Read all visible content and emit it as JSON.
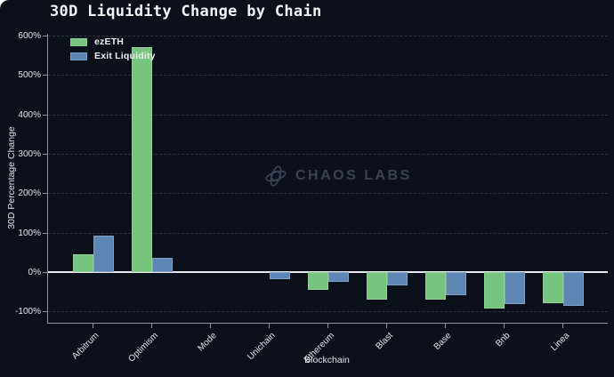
{
  "header": {
    "title": "30D Liquidity Change by Chain"
  },
  "watermark": {
    "label": "CHAOS LABS",
    "logo_icon": "chaos-labs-atom-icon"
  },
  "colors": {
    "background": "#0c101b",
    "ezeth_green": "#76c47e",
    "exit_liquidity_blue": "#5d86b5",
    "gridline": "#2e3342",
    "zero_line": "#e6e8ed",
    "text": "#e2e5ea"
  },
  "chart_data": {
    "type": "bar",
    "title": "30D Liquidity Change by Chain",
    "xlabel": "Blockchain",
    "ylabel": "30D Percentage Change",
    "categories": [
      "Arbitrum",
      "Optimism",
      "Mode",
      "Unichain",
      "Ethereum",
      "Blast",
      "Base",
      "Bnb",
      "Linea"
    ],
    "series": [
      {
        "name": "ezETH",
        "color": "#76c47e",
        "values": [
          45,
          572,
          0,
          0,
          -45,
          -70,
          -70,
          -92,
          -79
        ]
      },
      {
        "name": "Exit Liquidity",
        "color": "#5d86b5",
        "values": [
          93,
          36,
          0,
          -18,
          -24,
          -34,
          -59,
          -81,
          -85
        ]
      }
    ],
    "y_ticks": [
      "600%",
      "500%",
      "400%",
      "300%",
      "200%",
      "100%",
      "0%",
      "-100%"
    ],
    "y_tick_values": [
      600,
      500,
      400,
      300,
      200,
      100,
      0,
      -100
    ],
    "ylim": [
      -129,
      605
    ],
    "grid": "horizontal-dashed",
    "legend_position": "top-left",
    "bar_unit": "percent"
  }
}
